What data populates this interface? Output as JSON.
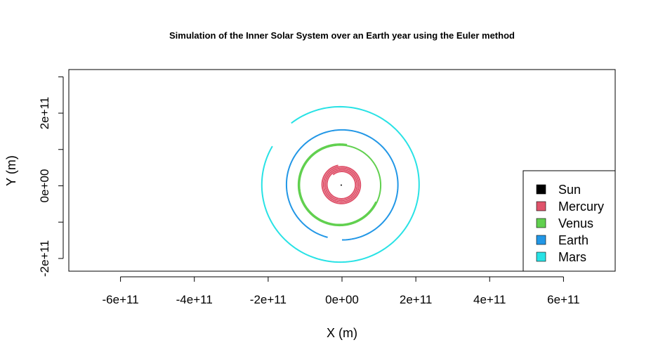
{
  "chart_data": {
    "type": "line",
    "title": "Simulation of the Inner Solar System over an Earth year using the Euler method",
    "xlabel": "X (m)",
    "ylabel": "Y (m)",
    "xlim": [
      -740000000000.0,
      740000000000.0
    ],
    "ylim": [
      -235000000000.0,
      320000000000.0
    ],
    "x_ticks": [
      -600000000000.0,
      -400000000000.0,
      -200000000000.0,
      0,
      200000000000.0,
      400000000000.0,
      600000000000.0
    ],
    "x_tick_labels": [
      "-6e+11",
      "-4e+11",
      "-2e+11",
      "0e+00",
      "2e+11",
      "4e+11",
      "6e+11"
    ],
    "y_ticks": [
      -200000000000.0,
      -100000000000.0,
      0,
      100000000000.0,
      200000000000.0,
      300000000000.0
    ],
    "y_tick_labels": [
      "-2e+11",
      "",
      "0e+00",
      "",
      "2e+11",
      ""
    ],
    "grid": false,
    "legend_position": "bottom-right",
    "series": [
      {
        "name": "Sun",
        "color": "#000000",
        "orbit": {
          "cx": -2000000000.0,
          "cy": 2000000000.0,
          "r0": 1000000000.0,
          "r1": 1000000000.0,
          "start_deg": 0,
          "end_deg": 360
        }
      },
      {
        "name": "Mercury",
        "color": "#DF536B",
        "orbit": {
          "cx": -1000000000.0,
          "cy": 3000000000.0,
          "r0": 54000000000.0,
          "r1": 36000000000.0,
          "start_deg": 100,
          "end_deg": 1570
        }
      },
      {
        "name": "Venus",
        "color": "#61D04F",
        "orbit": {
          "cx": -6000000000.0,
          "cy": 2000000000.0,
          "r0": 113000000000.0,
          "r1": 108000000000.0,
          "start_deg": 80,
          "end_deg": 695
        }
      },
      {
        "name": "Earth",
        "color": "#2297E6",
        "orbit": {
          "cx": 0,
          "cy": 3000000000.0,
          "r0": 152000000000.0,
          "r1": 150000000000.0,
          "start_deg": 270,
          "end_deg": 615
        }
      },
      {
        "name": "Mars",
        "color": "#28E2E5",
        "orbit": {
          "cx": -5000000000.0,
          "cy": 3000000000.0,
          "r0": 212000000000.0,
          "r1": 215000000000.0,
          "start_deg": 150,
          "end_deg": 488
        }
      }
    ]
  }
}
